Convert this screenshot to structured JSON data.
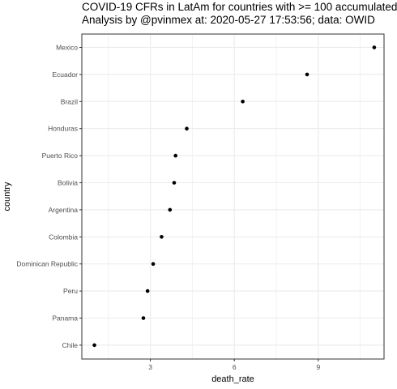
{
  "chart_data": {
    "type": "scatter",
    "title": "COVID-19 CFRs in LatAm for countries with >= 100 accumulated",
    "subtitle": "Analysis by @pvinmex at: 2020-05-27 17:53:56; data: OWID",
    "xlabel": "death_rate",
    "ylabel": "country",
    "xlim": [
      0.55,
      11.35
    ],
    "x_ticks": [
      3,
      6,
      9
    ],
    "grid": true,
    "categories": [
      "Mexico",
      "Ecuador",
      "Brazil",
      "Honduras",
      "Puerto Rico",
      "Bolivia",
      "Argentina",
      "Colombia",
      "Dominican Republic",
      "Peru",
      "Panama",
      "Chile"
    ],
    "values": [
      11.0,
      8.6,
      6.3,
      4.3,
      3.9,
      3.85,
      3.7,
      3.4,
      3.1,
      2.9,
      2.75,
      1.0
    ]
  },
  "colors": {
    "point": "#000000",
    "grid": "#ebebeb",
    "panel_border": "#333333"
  }
}
